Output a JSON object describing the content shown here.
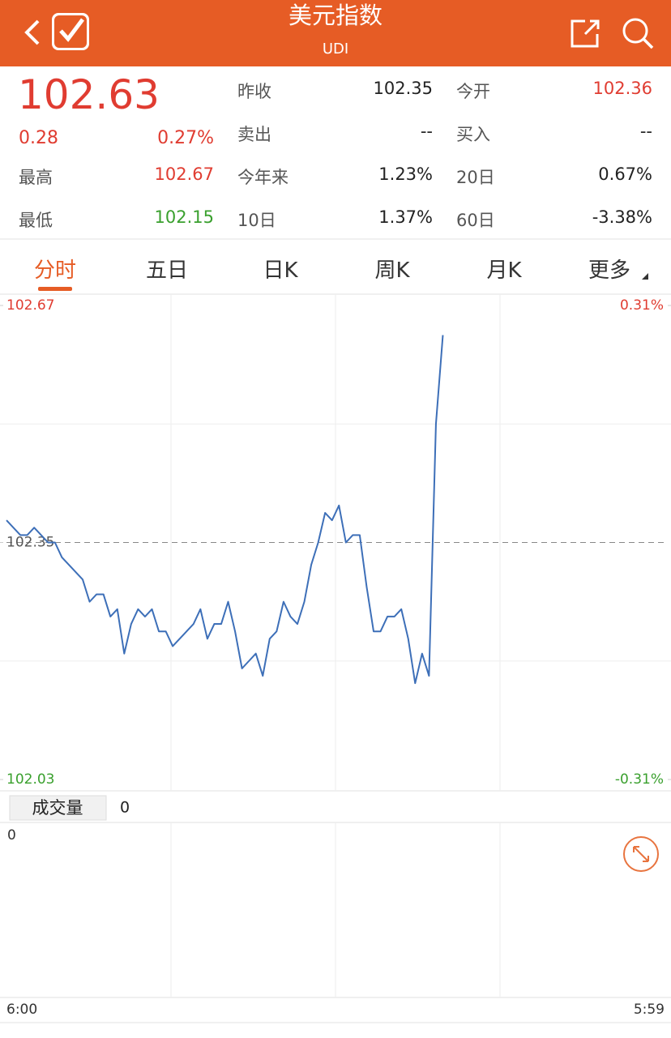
{
  "header": {
    "title": "美元指数",
    "subtitle": "UDI"
  },
  "quote": {
    "price": "102.63",
    "change": "0.28",
    "change_pct": "0.27%",
    "high_label": "最高",
    "high": "102.67",
    "low_label": "最低",
    "low": "102.15",
    "fields": [
      [
        "昨收",
        "102.35"
      ],
      [
        "今开",
        "102.36"
      ],
      [
        "卖出",
        "--"
      ],
      [
        "买入",
        "--"
      ],
      [
        "今年来",
        "1.23%"
      ],
      [
        "20日",
        "0.67%"
      ],
      [
        "10日",
        "1.37%"
      ],
      [
        "60日",
        "-3.38%"
      ]
    ]
  },
  "tabs": [
    "分时",
    "五日",
    "日K",
    "周K",
    "月K",
    "更多"
  ],
  "chart_data": {
    "type": "line",
    "color": "#3d6fb8",
    "ylim": [
      102.03,
      102.67
    ],
    "yticks": [
      102.03,
      102.35,
      102.67
    ],
    "grid_values": [
      102.19,
      102.51
    ],
    "reference": 102.35,
    "y2lim": [
      -0.31,
      0.31
    ],
    "y2ticks": [
      {
        "value": -0.31,
        "label": "-0.31%"
      },
      {
        "value": 0.31,
        "label": "0.31%"
      }
    ],
    "categories": [
      "6:00",
      null,
      null,
      null,
      null,
      null,
      null,
      null,
      null,
      null,
      null,
      null,
      null,
      null,
      null,
      null,
      null,
      null,
      null,
      null,
      null,
      null,
      null,
      null,
      null,
      null,
      null,
      null,
      null,
      null,
      null,
      null,
      null,
      null,
      null,
      null,
      null,
      null,
      null,
      null,
      null,
      null,
      null,
      null,
      null,
      null,
      null,
      null,
      null,
      null,
      null,
      null,
      null,
      null,
      null,
      null,
      null,
      null,
      null,
      null,
      null,
      null,
      null,
      null,
      null,
      null,
      null,
      null,
      null,
      null,
      null,
      null,
      null,
      null,
      null,
      null,
      null,
      null,
      null,
      null,
      null,
      null,
      null,
      null,
      null,
      null,
      null,
      null,
      null,
      null,
      null,
      null,
      null,
      null,
      null,
      "5:59"
    ],
    "values": [
      102.38,
      102.37,
      102.36,
      102.36,
      102.37,
      102.36,
      102.35,
      102.35,
      102.33,
      102.32,
      102.31,
      102.3,
      102.27,
      102.28,
      102.28,
      102.25,
      102.26,
      102.2,
      102.24,
      102.26,
      102.25,
      102.26,
      102.23,
      102.23,
      102.21,
      102.22,
      102.23,
      102.24,
      102.26,
      102.22,
      102.24,
      102.24,
      102.27,
      102.23,
      102.18,
      102.19,
      102.2,
      102.17,
      102.22,
      102.23,
      102.27,
      102.25,
      102.24,
      102.27,
      102.32,
      102.35,
      102.39,
      102.38,
      102.4,
      102.35,
      102.36,
      102.36,
      102.29,
      102.23,
      102.23,
      102.25,
      102.25,
      102.26,
      102.22,
      102.16,
      102.2,
      102.17,
      102.51,
      102.63,
      null,
      null,
      null,
      null,
      null,
      null,
      null,
      null,
      null,
      null,
      null,
      null,
      null,
      null,
      null,
      null,
      null,
      null,
      null,
      null,
      null,
      null,
      null,
      null,
      null,
      null,
      null,
      null,
      null,
      null,
      null,
      null
    ]
  },
  "volume": {
    "label": "成交量",
    "value": "0",
    "axis_label": "0"
  }
}
